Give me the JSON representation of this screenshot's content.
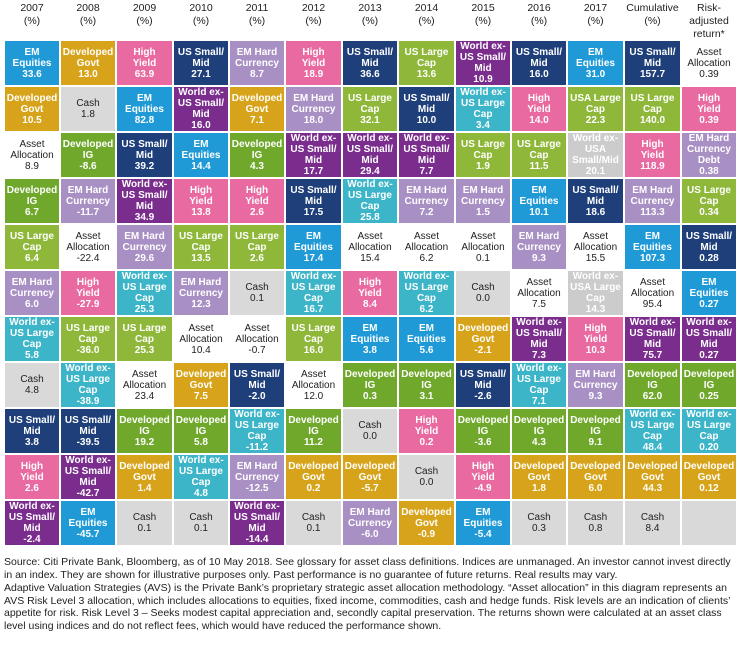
{
  "chart_data": {
    "type": "table",
    "columns": [
      "2007\n(%)",
      "2008\n(%)",
      "2009\n(%)",
      "2010\n(%)",
      "2011\n(%)",
      "2012\n(%)",
      "2013\n(%)",
      "2014\n(%)",
      "2015\n(%)",
      "2016\n(%)",
      "2017\n(%)",
      "Cumulative\n(%)",
      "Risk-\nadjusted\nreturn*"
    ],
    "colors": {
      "EM Equities": "#1f9ad6",
      "Developed Govt": "#d7a31a",
      "High Yield": "#e86aa0",
      "US Small/Mid": "#1f3f7a",
      "EM Hard Currency": "#a88fc4",
      "US Large Cap": "#8fb83a",
      "World ex-US Small/Mid": "#7b2d8e",
      "World ex-US Large Cap": "#3db5c8",
      "Developed IG": "#6fa82b",
      "Asset Allocation": "#ffffff",
      "Cash": "#d9d9d9",
      "USA Large Cap": "#8fb83a",
      "EM Hard Currency Debt": "#a88fc4"
    },
    "labels": {
      "EM Equities": "EM\nEquities",
      "Developed Govt": "Developed\nGovt",
      "High Yield": "High\nYield",
      "US Small/Mid": "US Small/\nMid",
      "EM Hard Currency": "EM Hard\nCurrency",
      "US Large Cap": "US Large\nCap",
      "World ex-US Small/Mid": "World ex-\nUS Small/\nMid",
      "World ex-US Large Cap": "World ex-\nUS Large\nCap",
      "Developed IG": "Developed\nIG",
      "Asset Allocation": "Asset\nAllocation",
      "Cash": "Cash",
      "USA Large Cap": "USA Large\nCap",
      "EM Hard Currency Debt": "EM Hard\nCurrency\nDebt"
    },
    "grid": [
      [
        [
          "EM Equities",
          "33.6"
        ],
        [
          "Developed Govt",
          "13.0"
        ],
        [
          "High Yield",
          "63.9"
        ],
        [
          "US Small/Mid",
          "27.1"
        ],
        [
          "EM Hard Currency",
          "8.7"
        ],
        [
          "High Yield",
          "18.9"
        ],
        [
          "US Small/Mid",
          "36.6"
        ],
        [
          "US Large Cap",
          "13.6"
        ],
        [
          "World ex-US Small/Mid",
          "10.9"
        ],
        [
          "US Small/Mid",
          "16.0"
        ],
        [
          "EM Equities",
          "31.0"
        ],
        [
          "US Small/Mid",
          "157.7"
        ],
        [
          "Asset Allocation",
          "0.39"
        ]
      ],
      [
        [
          "Developed Govt",
          "10.5"
        ],
        [
          "Cash",
          "1.8"
        ],
        [
          "EM Equities",
          "82.8"
        ],
        [
          "World ex-US Small/Mid",
          "16.0"
        ],
        [
          "Developed Govt",
          "7.1"
        ],
        [
          "EM Hard Currency",
          "18.0"
        ],
        [
          "US Large Cap",
          "32.1"
        ],
        [
          "US Small/Mid",
          "10.0"
        ],
        [
          "World ex-US Large Cap",
          "3.4"
        ],
        [
          "High Yield",
          "14.0"
        ],
        [
          "USA Large Cap",
          "22.3"
        ],
        [
          "US Large Cap",
          "140.0"
        ],
        [
          "High Yield",
          "0.39"
        ]
      ],
      [
        [
          "Asset Allocation",
          "8.9"
        ],
        [
          "Developed IG",
          "-8.6"
        ],
        [
          "US Small/Mid",
          "39.2"
        ],
        [
          "EM Equities",
          "14.4"
        ],
        [
          "Developed IG",
          "4.3"
        ],
        [
          "World ex-US Small/Mid",
          "17.7"
        ],
        [
          "World ex-US Small/Mid",
          "29.4"
        ],
        [
          "World ex-US Small/Mid",
          "7.7"
        ],
        [
          "US Large Cap",
          "1.9"
        ],
        [
          "US Large Cap",
          "11.5"
        ],
        [
          "World ex-USA Small/Mid",
          "20.1"
        ],
        [
          "High Yield",
          "118.9"
        ],
        [
          "EM Hard Currency Debt",
          "0.38"
        ]
      ],
      [
        [
          "Developed IG",
          "6.7"
        ],
        [
          "EM Hard Currency",
          "-11.7"
        ],
        [
          "World ex-US Small/Mid",
          "34.9"
        ],
        [
          "High Yield",
          "13.8"
        ],
        [
          "High Yield",
          "2.6"
        ],
        [
          "US Small/Mid",
          "17.5"
        ],
        [
          "World ex-US Large Cap",
          "25.8"
        ],
        [
          "EM Hard Currency",
          "7.2"
        ],
        [
          "EM Hard Currency",
          "1.5"
        ],
        [
          "EM Equities",
          "10.1"
        ],
        [
          "US Small/Mid",
          "18.6"
        ],
        [
          "EM Hard Currency",
          "113.3"
        ],
        [
          "US Large Cap",
          "0.34"
        ]
      ],
      [
        [
          "US Large Cap",
          "6.4"
        ],
        [
          "Asset Allocation",
          "-22.4"
        ],
        [
          "EM Hard Currency",
          "29.6"
        ],
        [
          "US Large Cap",
          "13.5"
        ],
        [
          "US Large Cap",
          "2.6"
        ],
        [
          "EM Equities",
          "17.4"
        ],
        [
          "Asset Allocation",
          "15.4"
        ],
        [
          "Asset Allocation",
          "6.2"
        ],
        [
          "Asset Allocation",
          "0.1"
        ],
        [
          "EM Hard Currency",
          "9.3"
        ],
        [
          "Asset Allocation",
          "15.5"
        ],
        [
          "EM Equities",
          "107.3"
        ],
        [
          "US Small/Mid",
          "0.28"
        ]
      ],
      [
        [
          "EM Hard Currency",
          "6.0"
        ],
        [
          "High Yield",
          "-27.9"
        ],
        [
          "World ex-US Large Cap",
          "25.3"
        ],
        [
          "EM Hard Currency",
          "12.3"
        ],
        [
          "Cash",
          "0.1"
        ],
        [
          "World ex-US Large Cap",
          "16.7"
        ],
        [
          "High Yield",
          "8.4"
        ],
        [
          "World ex-US Large Cap",
          "6.2"
        ],
        [
          "Cash",
          "0.0"
        ],
        [
          "Asset Allocation",
          "7.5"
        ],
        [
          "World ex-USA Large Cap",
          "14.3"
        ],
        [
          "Asset Allocation",
          "95.4"
        ],
        [
          "EM Equities",
          "0.27"
        ]
      ],
      [
        [
          "World ex-US Large Cap",
          "5.8"
        ],
        [
          "US Large Cap",
          "-36.0"
        ],
        [
          "US Large Cap",
          "25.3"
        ],
        [
          "Asset Allocation",
          "10.4"
        ],
        [
          "Asset Allocation",
          "-0.7"
        ],
        [
          "US Large Cap",
          "16.0"
        ],
        [
          "EM Equities",
          "3.8"
        ],
        [
          "EM Equities",
          "5.6"
        ],
        [
          "Developed Govt",
          "-2.1"
        ],
        [
          "World ex-US Small/Mid",
          "7.3"
        ],
        [
          "High Yield",
          "10.3"
        ],
        [
          "World ex-US Small/Mid",
          "75.7"
        ],
        [
          "World ex-US Small/Mid",
          "0.27"
        ]
      ],
      [
        [
          "Cash",
          "4.8"
        ],
        [
          "World ex-US Large Cap",
          "-38.9"
        ],
        [
          "Asset Allocation",
          "23.4"
        ],
        [
          "Developed Govt",
          "7.5"
        ],
        [
          "US Small/Mid",
          "-2.0"
        ],
        [
          "Asset Allocation",
          "12.0"
        ],
        [
          "Developed IG",
          "0.3"
        ],
        [
          "Developed IG",
          "3.1"
        ],
        [
          "US Small/Mid",
          "-2.6"
        ],
        [
          "World ex-US Large Cap",
          "7.1"
        ],
        [
          "EM Hard Currency",
          "9.3"
        ],
        [
          "Developed IG",
          "62.0"
        ],
        [
          "Developed IG",
          "0.25"
        ]
      ],
      [
        [
          "US Small/Mid",
          "3.8"
        ],
        [
          "US Small/Mid",
          "-39.5"
        ],
        [
          "Developed IG",
          "19.2"
        ],
        [
          "Developed IG",
          "5.8"
        ],
        [
          "World ex-US Large Cap",
          "-11.2"
        ],
        [
          "Developed IG",
          "11.2"
        ],
        [
          "Cash",
          "0.0"
        ],
        [
          "High Yield",
          "0.2"
        ],
        [
          "Developed IG",
          "-3.6"
        ],
        [
          "Developed IG",
          "4.3"
        ],
        [
          "Developed IG",
          "9.1"
        ],
        [
          "World ex-US Large Cap",
          "48.4"
        ],
        [
          "World ex-US Large Cap",
          "0.20"
        ]
      ],
      [
        [
          "High Yield",
          "2.6"
        ],
        [
          "World ex-US Small/Mid",
          "-42.7"
        ],
        [
          "Developed Govt",
          "1.4"
        ],
        [
          "World ex-US Large Cap",
          "4.8"
        ],
        [
          "EM Hard Currency",
          "-12.5"
        ],
        [
          "Developed Govt",
          "0.2"
        ],
        [
          "Developed Govt",
          "-5.7"
        ],
        [
          "Cash",
          "0.0"
        ],
        [
          "High Yield",
          "-4.9"
        ],
        [
          "Developed Govt",
          "1.8"
        ],
        [
          "Developed Govt",
          "6.0"
        ],
        [
          "Developed Govt",
          "44.3"
        ],
        [
          "Developed Govt",
          "0.12"
        ]
      ],
      [
        [
          "World ex-US Small/Mid",
          "-2.4"
        ],
        [
          "EM Equities",
          "-45.7"
        ],
        [
          "Cash",
          "0.1"
        ],
        [
          "Cash",
          "0.1"
        ],
        [
          "World ex-US Small/Mid",
          "-14.4"
        ],
        [
          "Cash",
          "0.1"
        ],
        [
          "EM Hard Currency",
          "-6.0"
        ],
        [
          "Developed Govt",
          "-0.9"
        ],
        [
          "EM Equities",
          "-5.4"
        ],
        [
          "Cash",
          "0.3"
        ],
        [
          "Cash",
          "0.8"
        ],
        [
          "Cash",
          "8.4"
        ],
        null
      ]
    ]
  },
  "footnote": {
    "source": "Source: Citi Private Bank, Bloomberg, as of 10 May 2018. See glossary for asset class definitions. Indices are unmanaged. An investor cannot invest directly in an index. They are shown for illustrative purposes only. Past performance is no guarantee of future returns. Real results may vary.",
    "avs": "Adaptive Valuation Strategies (AVS) is the Private Bank’s proprietary strategic asset allocation methodology. “Asset allocation” in this diagram represents an AVS Risk Level 3 allocation, which includes allocations to equities, fixed income, commodities, cash and hedge funds. Risk levels are an indication of clients’ appetite for risk. Risk Level 3 – Seeks modest capital appreciation and, secondly capital preservation. The returns shown were calculated at an asset class level using indices and do not reflect fees, which would have reduced the performance shown."
  }
}
